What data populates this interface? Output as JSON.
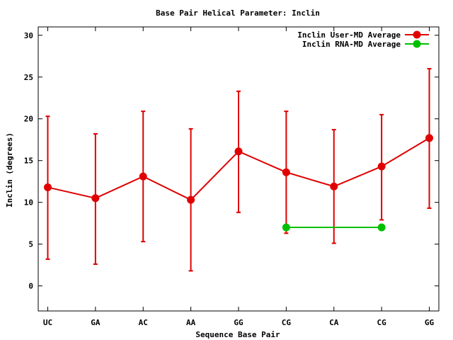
{
  "chart_data": {
    "type": "line",
    "title": "Base Pair Helical Parameter: Inclin",
    "xlabel": "Sequence Base Pair",
    "ylabel": "Inclin (degrees)",
    "categories": [
      "UC",
      "GA",
      "AC",
      "AA",
      "GG",
      "CG",
      "CA",
      "CG",
      "GG"
    ],
    "ylim": [
      -3,
      31
    ],
    "yticks": [
      0,
      5,
      10,
      15,
      20,
      25,
      30
    ],
    "grid": false,
    "legend_position": "top-right",
    "series": [
      {
        "name": "Inclin User-MD Average",
        "color": "#e00000",
        "x": [
          1,
          2,
          3,
          4,
          5,
          6,
          7,
          8,
          9
        ],
        "values": [
          11.8,
          10.5,
          13.1,
          10.3,
          16.1,
          13.6,
          11.9,
          14.3,
          17.7
        ],
        "error_low": [
          3.2,
          2.6,
          5.3,
          1.8,
          8.8,
          6.3,
          5.1,
          7.9,
          9.3
        ],
        "error_high": [
          20.3,
          18.2,
          20.9,
          18.8,
          23.3,
          20.9,
          18.7,
          20.5,
          26.0
        ]
      },
      {
        "name": "Inclin RNA-MD Average",
        "color": "#00c000",
        "x": [
          6,
          8
        ],
        "values": [
          7.0,
          7.0
        ]
      }
    ]
  }
}
